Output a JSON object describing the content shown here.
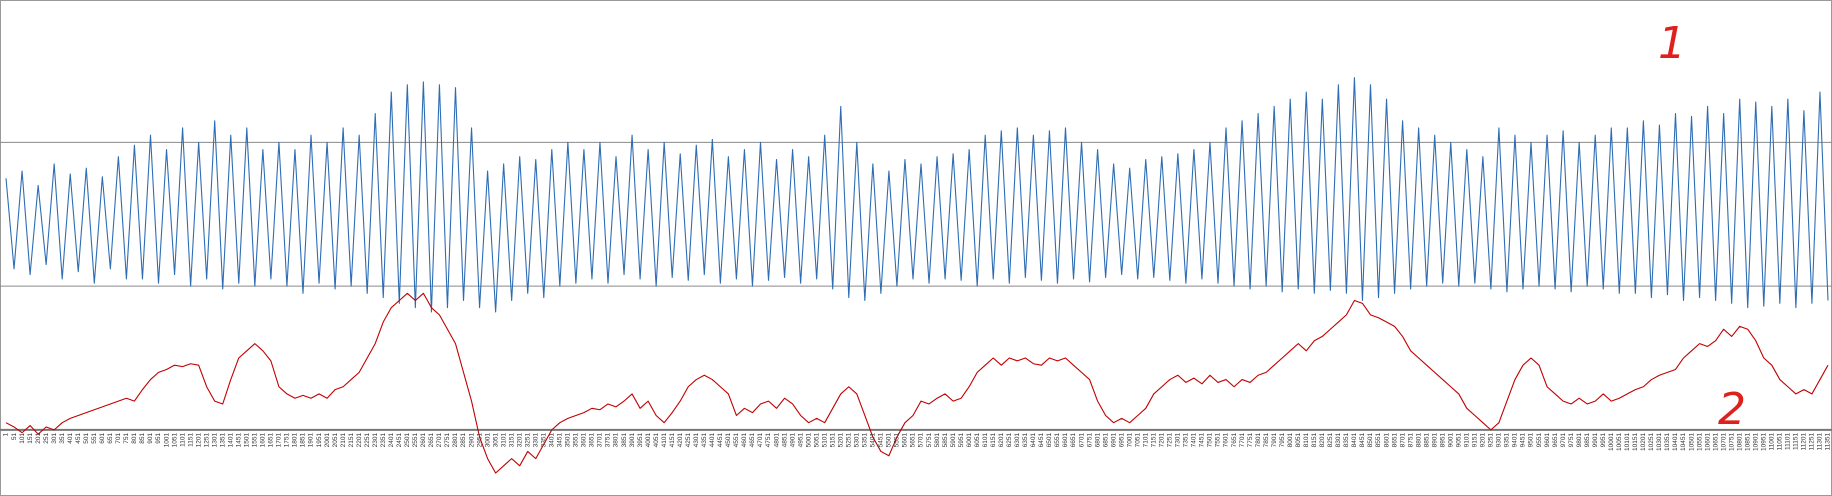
{
  "chart_data": {
    "type": "line",
    "categories": [
      "1",
      "51",
      "101",
      "151",
      "201",
      "251",
      "301",
      "351",
      "401",
      "451",
      "501",
      "551",
      "601",
      "651",
      "701",
      "751",
      "801",
      "851",
      "901",
      "951",
      "1001",
      "1051",
      "1101",
      "1151",
      "1201",
      "1251",
      "1301",
      "1351",
      "1401",
      "1451",
      "1501",
      "1551",
      "1601",
      "1651",
      "1701",
      "1751",
      "1801",
      "1851",
      "1901",
      "1951",
      "2001",
      "2051",
      "2101",
      "2151",
      "2201",
      "2251",
      "2301",
      "2351",
      "2401",
      "2451",
      "2501",
      "2551",
      "2601",
      "2651",
      "2701",
      "2751",
      "2801",
      "2851",
      "2901",
      "2951",
      "3001",
      "3051",
      "3101",
      "3151",
      "3201",
      "3251",
      "3301",
      "3351",
      "3401",
      "3451",
      "3501",
      "3551",
      "3601",
      "3651",
      "3701",
      "3751",
      "3801",
      "3851",
      "3901",
      "3951",
      "4001",
      "4051",
      "4101",
      "4151",
      "4201",
      "4251",
      "4301",
      "4351",
      "4401",
      "4451",
      "4501",
      "4551",
      "4601",
      "4651",
      "4701",
      "4751",
      "4801",
      "4851",
      "4901",
      "4951",
      "5001",
      "5051",
      "5101",
      "5151",
      "5201",
      "5251",
      "5301",
      "5351",
      "5401",
      "5451",
      "5501",
      "5551",
      "5601",
      "5651",
      "5701",
      "5751",
      "5801",
      "5851",
      "5901",
      "5951",
      "6001",
      "6051",
      "6101",
      "6151",
      "6201",
      "6251",
      "6301",
      "6351",
      "6401",
      "6451",
      "6501",
      "6551",
      "6601",
      "6651",
      "6701",
      "6751",
      "6801",
      "6851",
      "6901",
      "6951",
      "7001",
      "7051",
      "7101",
      "7151",
      "7201",
      "7251",
      "7301",
      "7351",
      "7401",
      "7451",
      "7501",
      "7551",
      "7601",
      "7651",
      "7701",
      "7751",
      "7801",
      "7851",
      "7901",
      "7951",
      "8001",
      "8051",
      "8101",
      "8151",
      "8201",
      "8251",
      "8301",
      "8351",
      "8401",
      "8451",
      "8501",
      "8551",
      "8601",
      "8651",
      "8701",
      "8751",
      "8801",
      "8851",
      "8901",
      "8951",
      "9001",
      "9051",
      "9101",
      "9151",
      "9201",
      "9251",
      "9301",
      "9351",
      "9401",
      "9451",
      "9501",
      "9551",
      "9601",
      "9651",
      "9701",
      "9751",
      "9801",
      "9851",
      "9901",
      "9951",
      "10001",
      "10051",
      "10101",
      "10151",
      "10201",
      "10251",
      "10301",
      "10351",
      "10401",
      "10451",
      "10501",
      "10551",
      "10601",
      "10651",
      "10701",
      "10751",
      "10801",
      "10851",
      "10901",
      "10951",
      "11001",
      "11051",
      "11101",
      "11151",
      "11201",
      "11251",
      "11301",
      "11351"
    ],
    "series": [
      {
        "color": "#2e6db4",
        "values": [
          1.75,
          1.12,
          1.8,
          1.08,
          1.7,
          1.15,
          1.85,
          1.05,
          1.78,
          1.1,
          1.82,
          1.02,
          1.76,
          1.12,
          1.9,
          1.05,
          1.98,
          1.05,
          2.05,
          1.02,
          1.95,
          1.08,
          2.1,
          1.0,
          2.0,
          1.05,
          2.15,
          0.98,
          2.05,
          1.02,
          2.1,
          1.0,
          1.95,
          1.05,
          2.0,
          1.0,
          1.95,
          0.95,
          2.05,
          1.02,
          2.0,
          0.98,
          2.1,
          1.0,
          2.05,
          0.95,
          2.2,
          0.92,
          2.35,
          0.88,
          2.4,
          0.85,
          2.42,
          0.82,
          2.4,
          0.85,
          2.38,
          0.9,
          2.1,
          0.85,
          1.8,
          0.82,
          1.85,
          0.9,
          1.9,
          0.95,
          1.88,
          0.92,
          1.95,
          1.0,
          2.0,
          1.02,
          1.95,
          1.05,
          2.0,
          1.02,
          1.9,
          1.08,
          2.05,
          1.05,
          1.95,
          1.0,
          2.0,
          1.06,
          1.92,
          1.04,
          1.98,
          1.08,
          2.02,
          1.02,
          1.9,
          1.05,
          1.95,
          1.0,
          2.0,
          1.04,
          1.88,
          1.06,
          1.95,
          1.02,
          1.9,
          1.05,
          2.05,
          0.98,
          2.25,
          0.92,
          2.0,
          0.9,
          1.85,
          0.95,
          1.8,
          1.0,
          1.88,
          1.05,
          1.85,
          1.02,
          1.9,
          1.05,
          1.92,
          1.04,
          1.95,
          1.0,
          2.05,
          1.05,
          2.08,
          1.02,
          2.1,
          1.06,
          2.05,
          1.04,
          2.08,
          1.02,
          2.1,
          1.05,
          2.0,
          1.03,
          1.95,
          1.06,
          1.85,
          1.08,
          1.82,
          1.05,
          1.88,
          1.06,
          1.9,
          1.04,
          1.92,
          1.02,
          1.95,
          1.05,
          2.0,
          1.02,
          2.1,
          1.0,
          2.15,
          0.98,
          2.2,
          1.0,
          2.25,
          0.96,
          2.3,
          0.98,
          2.35,
          0.95,
          2.3,
          0.97,
          2.4,
          0.95,
          2.45,
          0.9,
          2.4,
          0.92,
          2.3,
          0.95,
          2.15,
          0.98,
          2.1,
          1.0,
          2.05,
          1.02,
          2.0,
          1.0,
          1.95,
          1.02,
          1.9,
          0.98,
          2.1,
          0.96,
          2.05,
          0.98,
          2.0,
          1.0,
          2.05,
          0.98,
          2.08,
          0.96,
          2.0,
          1.0,
          2.05,
          0.98,
          2.1,
          0.95,
          2.1,
          0.95,
          2.15,
          0.92,
          2.12,
          0.94,
          2.2,
          0.9,
          2.18,
          0.92,
          2.25,
          0.9,
          2.2,
          0.88,
          2.3,
          0.85,
          2.28,
          0.86,
          2.25,
          0.88,
          2.3,
          0.85,
          2.22,
          0.88,
          2.35,
          0.9
        ]
      },
      {
        "color": "#c00000",
        "values": [
          0.05,
          0.02,
          -0.02,
          0.03,
          -0.03,
          0.02,
          0.0,
          0.05,
          0.08,
          0.1,
          0.12,
          0.14,
          0.16,
          0.18,
          0.2,
          0.22,
          0.2,
          0.28,
          0.35,
          0.4,
          0.42,
          0.45,
          0.44,
          0.46,
          0.45,
          0.3,
          0.2,
          0.18,
          0.35,
          0.5,
          0.55,
          0.6,
          0.55,
          0.48,
          0.3,
          0.25,
          0.22,
          0.24,
          0.22,
          0.25,
          0.22,
          0.28,
          0.3,
          0.35,
          0.4,
          0.5,
          0.6,
          0.75,
          0.85,
          0.9,
          0.95,
          0.9,
          0.95,
          0.85,
          0.8,
          0.7,
          0.6,
          0.4,
          0.2,
          -0.05,
          -0.2,
          -0.3,
          -0.25,
          -0.2,
          -0.25,
          -0.15,
          -0.2,
          -0.1,
          0.0,
          0.05,
          0.08,
          0.1,
          0.12,
          0.15,
          0.14,
          0.18,
          0.16,
          0.2,
          0.25,
          0.15,
          0.2,
          0.1,
          0.05,
          0.12,
          0.2,
          0.3,
          0.35,
          0.38,
          0.35,
          0.3,
          0.25,
          0.1,
          0.15,
          0.12,
          0.18,
          0.2,
          0.15,
          0.22,
          0.18,
          0.1,
          0.05,
          0.08,
          0.05,
          0.15,
          0.25,
          0.3,
          0.25,
          0.1,
          -0.05,
          -0.15,
          -0.18,
          -0.05,
          0.05,
          0.1,
          0.2,
          0.18,
          0.22,
          0.25,
          0.2,
          0.22,
          0.3,
          0.4,
          0.45,
          0.5,
          0.45,
          0.5,
          0.48,
          0.5,
          0.46,
          0.45,
          0.5,
          0.48,
          0.5,
          0.45,
          0.4,
          0.35,
          0.2,
          0.1,
          0.05,
          0.08,
          0.05,
          0.1,
          0.15,
          0.25,
          0.3,
          0.35,
          0.38,
          0.33,
          0.36,
          0.32,
          0.38,
          0.33,
          0.35,
          0.3,
          0.35,
          0.33,
          0.38,
          0.4,
          0.45,
          0.5,
          0.55,
          0.6,
          0.55,
          0.62,
          0.65,
          0.7,
          0.75,
          0.8,
          0.9,
          0.88,
          0.8,
          0.78,
          0.75,
          0.72,
          0.65,
          0.55,
          0.5,
          0.45,
          0.4,
          0.35,
          0.3,
          0.25,
          0.15,
          0.1,
          0.05,
          0.0,
          0.05,
          0.2,
          0.35,
          0.45,
          0.5,
          0.45,
          0.3,
          0.25,
          0.2,
          0.18,
          0.22,
          0.18,
          0.2,
          0.25,
          0.2,
          0.22,
          0.25,
          0.28,
          0.3,
          0.35,
          0.38,
          0.4,
          0.42,
          0.5,
          0.55,
          0.6,
          0.58,
          0.62,
          0.7,
          0.65,
          0.72,
          0.7,
          0.62,
          0.5,
          0.45,
          0.35,
          0.3,
          0.25,
          0.28,
          0.25,
          0.35,
          0.45
        ]
      }
    ],
    "ylim": [
      -0.46,
      2.99
    ],
    "yticks": [
      0,
      1,
      2
    ],
    "grid": true,
    "annotations": [
      "1",
      "2"
    ]
  }
}
